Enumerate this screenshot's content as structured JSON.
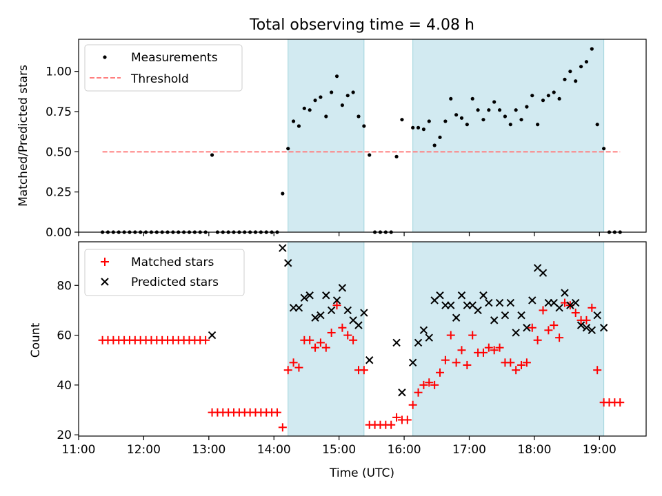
{
  "colors": {
    "band": "#add8e6",
    "threshold": "#ff7f7f",
    "matched": "#ff0000",
    "predicted": "#000000",
    "measurement": "#000000"
  },
  "chart_data": [
    {
      "type": "scatter",
      "title": "Total observing time = 4.08 h",
      "xlabel": "",
      "ylabel": "Matched/Predicted stars",
      "xlim": [
        "11:00",
        "19:43"
      ],
      "ylim": [
        0,
        1.2
      ],
      "yticks": [
        "0.00",
        "0.25",
        "0.50",
        "0.75",
        "1.00"
      ],
      "grid": false,
      "legend": "top-left",
      "observing_windows": [
        [
          "14:13",
          "15:23"
        ],
        [
          "16:08",
          "19:04"
        ]
      ],
      "series": [
        {
          "name": "Measurements",
          "marker": "dot",
          "points": [
            [
              "11:22",
              0
            ],
            [
              "11:27",
              0
            ],
            [
              "11:32",
              0
            ],
            [
              "11:37",
              0
            ],
            [
              "11:42",
              0
            ],
            [
              "11:47",
              0
            ],
            [
              "11:52",
              0
            ],
            [
              "11:57",
              0
            ],
            [
              "12:02",
              0
            ],
            [
              "12:07",
              0
            ],
            [
              "12:12",
              0
            ],
            [
              "12:17",
              0
            ],
            [
              "12:22",
              0
            ],
            [
              "12:27",
              0
            ],
            [
              "12:32",
              0
            ],
            [
              "12:37",
              0
            ],
            [
              "12:42",
              0
            ],
            [
              "12:47",
              0
            ],
            [
              "12:52",
              0
            ],
            [
              "12:57",
              0
            ],
            [
              "13:03",
              0.48
            ],
            [
              "13:08",
              0
            ],
            [
              "13:13",
              0
            ],
            [
              "13:18",
              0
            ],
            [
              "13:23",
              0
            ],
            [
              "13:28",
              0
            ],
            [
              "13:33",
              0
            ],
            [
              "13:38",
              0
            ],
            [
              "13:43",
              0
            ],
            [
              "13:48",
              0
            ],
            [
              "13:53",
              0
            ],
            [
              "13:58",
              0
            ],
            [
              "14:03",
              0
            ],
            [
              "14:08",
              0.24
            ],
            [
              "14:13",
              0.52
            ],
            [
              "14:18",
              0.69
            ],
            [
              "14:23",
              0.66
            ],
            [
              "14:28",
              0.77
            ],
            [
              "14:33",
              0.76
            ],
            [
              "14:38",
              0.82
            ],
            [
              "14:43",
              0.84
            ],
            [
              "14:48",
              0.72
            ],
            [
              "14:53",
              0.87
            ],
            [
              "14:58",
              0.97
            ],
            [
              "15:03",
              0.79
            ],
            [
              "15:08",
              0.85
            ],
            [
              "15:13",
              0.87
            ],
            [
              "15:18",
              0.72
            ],
            [
              "15:23",
              0.66
            ],
            [
              "15:28",
              0.48
            ],
            [
              "15:33",
              0
            ],
            [
              "15:38",
              0
            ],
            [
              "15:43",
              0
            ],
            [
              "15:48",
              0
            ],
            [
              "15:53",
              0.47
            ],
            [
              "15:58",
              0.7
            ],
            [
              "16:08",
              0.65
            ],
            [
              "16:13",
              0.65
            ],
            [
              "16:18",
              0.64
            ],
            [
              "16:23",
              0.69
            ],
            [
              "16:28",
              0.54
            ],
            [
              "16:33",
              0.59
            ],
            [
              "16:38",
              0.69
            ],
            [
              "16:43",
              0.83
            ],
            [
              "16:48",
              0.73
            ],
            [
              "16:53",
              0.71
            ],
            [
              "16:58",
              0.67
            ],
            [
              "17:03",
              0.83
            ],
            [
              "17:08",
              0.76
            ],
            [
              "17:13",
              0.7
            ],
            [
              "17:18",
              0.76
            ],
            [
              "17:23",
              0.81
            ],
            [
              "17:28",
              0.76
            ],
            [
              "17:33",
              0.72
            ],
            [
              "17:38",
              0.67
            ],
            [
              "17:43",
              0.76
            ],
            [
              "17:48",
              0.7
            ],
            [
              "17:53",
              0.78
            ],
            [
              "17:58",
              0.85
            ],
            [
              "18:03",
              0.67
            ],
            [
              "18:08",
              0.82
            ],
            [
              "18:13",
              0.85
            ],
            [
              "18:18",
              0.87
            ],
            [
              "18:23",
              0.83
            ],
            [
              "18:28",
              0.95
            ],
            [
              "18:33",
              1.0
            ],
            [
              "18:38",
              0.94
            ],
            [
              "18:43",
              1.03
            ],
            [
              "18:48",
              1.06
            ],
            [
              "18:53",
              1.14
            ],
            [
              "18:58",
              0.67
            ],
            [
              "19:04",
              0.52
            ],
            [
              "19:09",
              0
            ],
            [
              "19:14",
              0
            ],
            [
              "19:19",
              0
            ]
          ]
        },
        {
          "name": "Threshold",
          "marker": "dashed-line",
          "points": [
            [
              "11:22",
              0.5
            ],
            [
              "19:19",
              0.5
            ]
          ]
        }
      ]
    },
    {
      "type": "scatter",
      "title": "",
      "xlabel": "Time (UTC)",
      "ylabel": "Count",
      "xlim": [
        "11:00",
        "19:43"
      ],
      "ylim": [
        19.5,
        97.5
      ],
      "yticks": [
        "20",
        "40",
        "60",
        "80"
      ],
      "xticks": [
        "11:00",
        "12:00",
        "13:00",
        "14:00",
        "15:00",
        "16:00",
        "17:00",
        "18:00",
        "19:00"
      ],
      "grid": false,
      "legend": "top-left",
      "observing_windows": [
        [
          "14:13",
          "15:23"
        ],
        [
          "16:08",
          "19:04"
        ]
      ],
      "series": [
        {
          "name": "Matched stars",
          "marker": "plus",
          "points": [
            [
              "11:22",
              58
            ],
            [
              "11:27",
              58
            ],
            [
              "11:32",
              58
            ],
            [
              "11:37",
              58
            ],
            [
              "11:42",
              58
            ],
            [
              "11:47",
              58
            ],
            [
              "11:52",
              58
            ],
            [
              "11:57",
              58
            ],
            [
              "12:02",
              58
            ],
            [
              "12:07",
              58
            ],
            [
              "12:12",
              58
            ],
            [
              "12:17",
              58
            ],
            [
              "12:22",
              58
            ],
            [
              "12:27",
              58
            ],
            [
              "12:32",
              58
            ],
            [
              "12:37",
              58
            ],
            [
              "12:42",
              58
            ],
            [
              "12:47",
              58
            ],
            [
              "12:52",
              58
            ],
            [
              "12:57",
              58
            ],
            [
              "13:03",
              29
            ],
            [
              "13:08",
              29
            ],
            [
              "13:13",
              29
            ],
            [
              "13:18",
              29
            ],
            [
              "13:23",
              29
            ],
            [
              "13:28",
              29
            ],
            [
              "13:33",
              29
            ],
            [
              "13:38",
              29
            ],
            [
              "13:43",
              29
            ],
            [
              "13:48",
              29
            ],
            [
              "13:53",
              29
            ],
            [
              "13:58",
              29
            ],
            [
              "14:03",
              29
            ],
            [
              "14:08",
              23
            ],
            [
              "14:13",
              46
            ],
            [
              "14:18",
              49
            ],
            [
              "14:23",
              47
            ],
            [
              "14:28",
              58
            ],
            [
              "14:33",
              58
            ],
            [
              "14:38",
              55
            ],
            [
              "14:43",
              57
            ],
            [
              "14:48",
              55
            ],
            [
              "14:53",
              61
            ],
            [
              "14:58",
              72
            ],
            [
              "15:03",
              63
            ],
            [
              "15:08",
              60
            ],
            [
              "15:13",
              58
            ],
            [
              "15:18",
              46
            ],
            [
              "15:23",
              46
            ],
            [
              "15:28",
              24
            ],
            [
              "15:33",
              24
            ],
            [
              "15:38",
              24
            ],
            [
              "15:43",
              24
            ],
            [
              "15:48",
              24
            ],
            [
              "15:53",
              27
            ],
            [
              "15:58",
              26
            ],
            [
              "16:03",
              26
            ],
            [
              "16:08",
              32
            ],
            [
              "16:13",
              37
            ],
            [
              "16:18",
              40
            ],
            [
              "16:23",
              41
            ],
            [
              "16:28",
              40
            ],
            [
              "16:33",
              45
            ],
            [
              "16:38",
              50
            ],
            [
              "16:43",
              60
            ],
            [
              "16:48",
              49
            ],
            [
              "16:53",
              54
            ],
            [
              "16:58",
              48
            ],
            [
              "17:03",
              60
            ],
            [
              "17:08",
              53
            ],
            [
              "17:13",
              53
            ],
            [
              "17:18",
              55
            ],
            [
              "17:23",
              54
            ],
            [
              "17:28",
              55
            ],
            [
              "17:33",
              49
            ],
            [
              "17:38",
              49
            ],
            [
              "17:43",
              46
            ],
            [
              "17:48",
              48
            ],
            [
              "17:53",
              49
            ],
            [
              "17:58",
              63
            ],
            [
              "18:03",
              58
            ],
            [
              "18:08",
              70
            ],
            [
              "18:13",
              62
            ],
            [
              "18:18",
              64
            ],
            [
              "18:23",
              59
            ],
            [
              "18:28",
              73
            ],
            [
              "18:33",
              72
            ],
            [
              "18:38",
              69
            ],
            [
              "18:43",
              66
            ],
            [
              "18:48",
              66
            ],
            [
              "18:53",
              71
            ],
            [
              "18:58",
              46
            ],
            [
              "19:04",
              33
            ],
            [
              "19:09",
              33
            ],
            [
              "19:14",
              33
            ],
            [
              "19:19",
              33
            ]
          ]
        },
        {
          "name": "Predicted stars",
          "marker": "x",
          "points": [
            [
              "13:03",
              60
            ],
            [
              "14:08",
              95
            ],
            [
              "14:13",
              89
            ],
            [
              "14:18",
              71
            ],
            [
              "14:23",
              71
            ],
            [
              "14:28",
              75
            ],
            [
              "14:33",
              76
            ],
            [
              "14:38",
              67
            ],
            [
              "14:43",
              68
            ],
            [
              "14:48",
              76
            ],
            [
              "14:53",
              70
            ],
            [
              "14:58",
              74
            ],
            [
              "15:03",
              79
            ],
            [
              "15:08",
              70
            ],
            [
              "15:13",
              66
            ],
            [
              "15:18",
              64
            ],
            [
              "15:23",
              69
            ],
            [
              "15:28",
              50
            ],
            [
              "15:53",
              57
            ],
            [
              "15:58",
              37
            ],
            [
              "16:08",
              49
            ],
            [
              "16:13",
              57
            ],
            [
              "16:18",
              62
            ],
            [
              "16:23",
              59
            ],
            [
              "16:28",
              74
            ],
            [
              "16:33",
              76
            ],
            [
              "16:38",
              72
            ],
            [
              "16:43",
              72
            ],
            [
              "16:48",
              67
            ],
            [
              "16:53",
              76
            ],
            [
              "16:58",
              72
            ],
            [
              "17:03",
              72
            ],
            [
              "17:08",
              70
            ],
            [
              "17:13",
              76
            ],
            [
              "17:18",
              73
            ],
            [
              "17:23",
              66
            ],
            [
              "17:28",
              73
            ],
            [
              "17:33",
              68
            ],
            [
              "17:38",
              73
            ],
            [
              "17:43",
              61
            ],
            [
              "17:48",
              68
            ],
            [
              "17:53",
              63
            ],
            [
              "17:58",
              74
            ],
            [
              "18:03",
              87
            ],
            [
              "18:08",
              85
            ],
            [
              "18:13",
              73
            ],
            [
              "18:18",
              73
            ],
            [
              "18:23",
              71
            ],
            [
              "18:28",
              77
            ],
            [
              "18:33",
              72
            ],
            [
              "18:38",
              73
            ],
            [
              "18:43",
              64
            ],
            [
              "18:48",
              63
            ],
            [
              "18:53",
              62
            ],
            [
              "18:58",
              68
            ],
            [
              "19:04",
              63
            ]
          ]
        }
      ]
    }
  ]
}
